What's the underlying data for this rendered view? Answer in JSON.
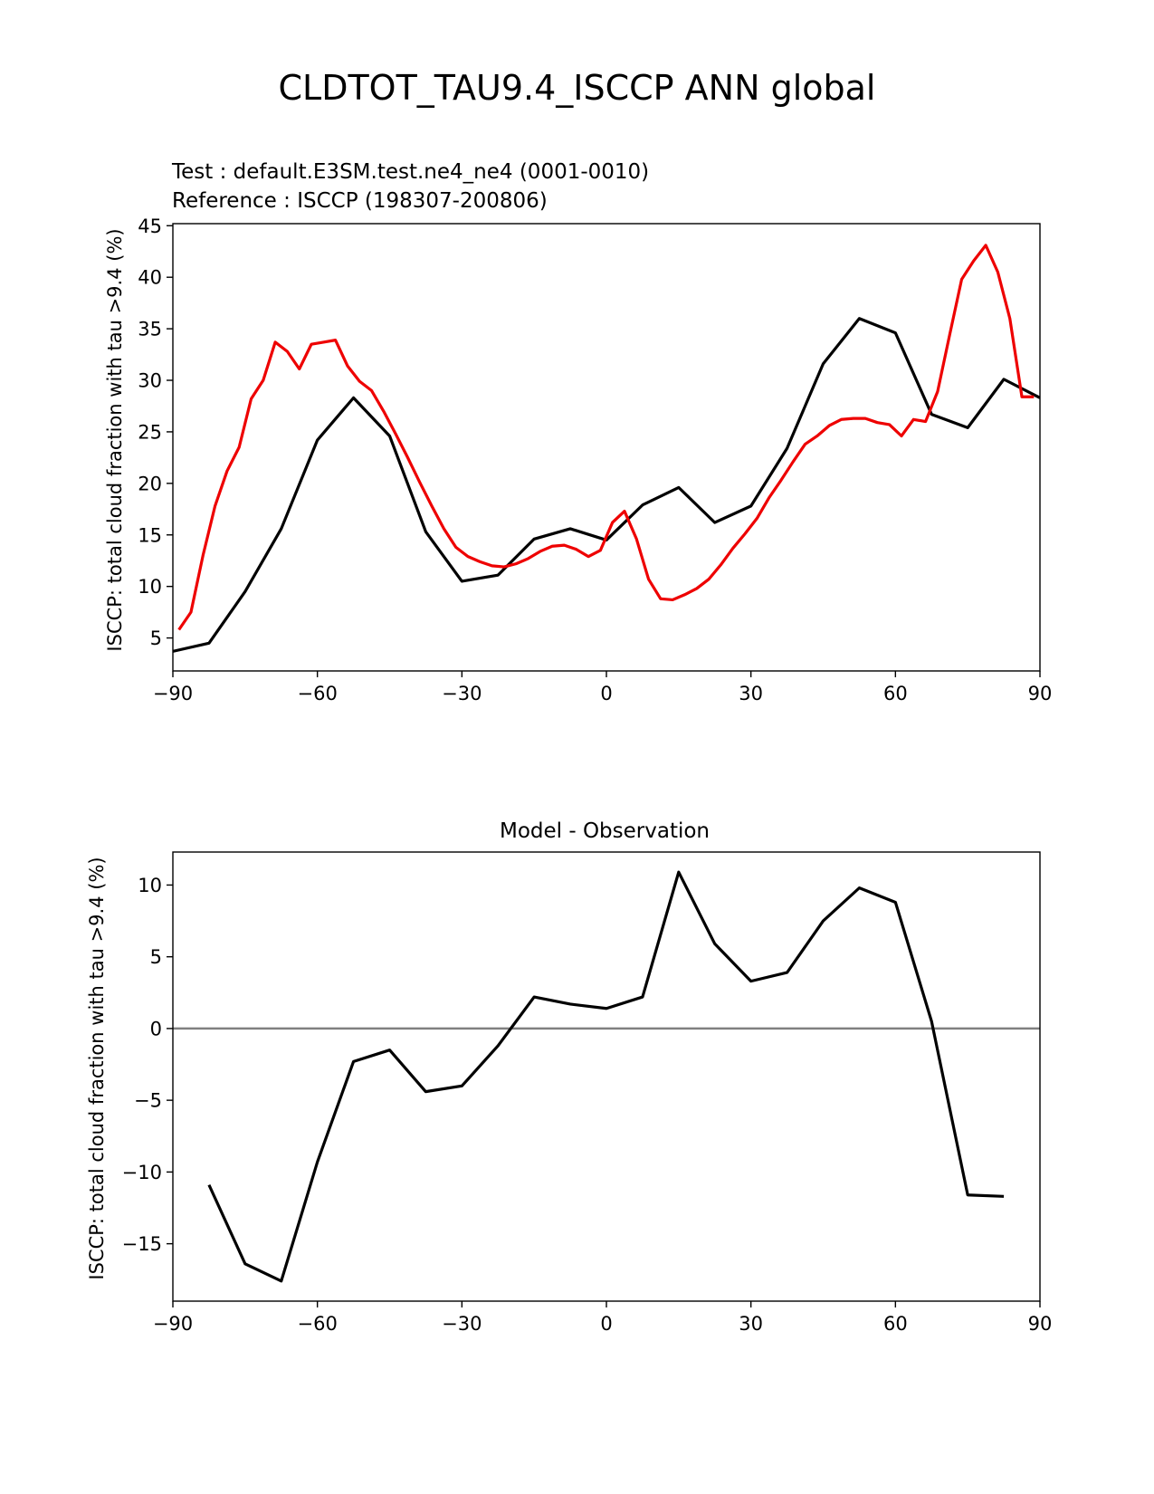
{
  "figure": {
    "title": "CLDTOT_TAU9.4_ISCCP ANN global"
  },
  "colors": {
    "test": "#000000",
    "reference": "#ee0000",
    "zero_line": "#808080",
    "axes": "#000000"
  },
  "chart_data": [
    {
      "type": "line",
      "test_label": "Test : default.E3SM.test.ne4_ne4 (0001-0010)",
      "reference_label": "Reference : ISCCP (198307-200806)",
      "xlabel": "",
      "ylabel": "ISCCP: total cloud fraction with tau >9.4 (%)",
      "xlim": [
        -90,
        90
      ],
      "ylim": [
        1.8,
        45.2
      ],
      "xticks": [
        -90,
        -60,
        -30,
        0,
        30,
        60,
        90
      ],
      "xtick_labels": [
        "−90",
        "−60",
        "−30",
        "0",
        "30",
        "60",
        "90"
      ],
      "yticks": [
        5,
        10,
        15,
        20,
        25,
        30,
        35,
        40,
        45
      ],
      "ytick_labels": [
        "5",
        "10",
        "15",
        "20",
        "25",
        "30",
        "35",
        "40",
        "45"
      ],
      "series": [
        {
          "name": "Test",
          "color_key": "test",
          "x": [
            -90,
            -82.5,
            -75,
            -67.5,
            -60,
            -52.5,
            -45,
            -37.5,
            -30,
            -22.5,
            -15,
            -7.5,
            0,
            7.5,
            15,
            22.5,
            30,
            37.5,
            45,
            52.5,
            60,
            67.5,
            75,
            82.5,
            90
          ],
          "y": [
            3.7,
            4.5,
            9.5,
            15.6,
            24.2,
            28.3,
            24.6,
            15.3,
            10.5,
            11.1,
            14.6,
            15.6,
            14.5,
            17.9,
            19.6,
            16.2,
            17.8,
            23.4,
            31.6,
            36.0,
            34.6,
            26.7,
            25.4,
            30.1,
            28.3
          ]
        },
        {
          "name": "Reference",
          "color_key": "reference",
          "x": [
            -88.75,
            -86.25,
            -83.75,
            -81.25,
            -78.75,
            -76.25,
            -73.75,
            -71.25,
            -68.75,
            -66.25,
            -63.75,
            -61.25,
            -58.75,
            -56.25,
            -53.75,
            -51.25,
            -48.75,
            -46.25,
            -43.75,
            -41.25,
            -38.75,
            -36.25,
            -33.75,
            -31.25,
            -28.75,
            -26.25,
            -23.75,
            -21.25,
            -18.75,
            -16.25,
            -13.75,
            -11.25,
            -8.75,
            -6.25,
            -3.75,
            -1.25,
            1.25,
            3.75,
            6.25,
            8.75,
            11.25,
            13.75,
            16.25,
            18.75,
            21.25,
            23.75,
            26.25,
            28.75,
            31.25,
            33.75,
            36.25,
            38.75,
            41.25,
            43.75,
            46.25,
            48.75,
            51.25,
            53.75,
            56.25,
            58.75,
            61.25,
            63.75,
            66.25,
            68.75,
            71.25,
            73.75,
            76.25,
            78.75,
            81.25,
            83.75,
            86.25,
            88.75
          ],
          "y": [
            5.8,
            7.5,
            13.0,
            17.8,
            21.2,
            23.5,
            28.2,
            30.0,
            33.7,
            32.8,
            31.1,
            33.5,
            33.7,
            33.9,
            31.4,
            29.9,
            29.0,
            27.0,
            24.8,
            22.5,
            20.1,
            17.8,
            15.6,
            13.8,
            12.9,
            12.4,
            12.0,
            11.9,
            12.2,
            12.7,
            13.4,
            13.9,
            14.0,
            13.6,
            12.9,
            13.5,
            16.2,
            17.3,
            14.6,
            10.7,
            8.8,
            8.7,
            9.2,
            9.8,
            10.7,
            12.1,
            13.7,
            15.1,
            16.6,
            18.6,
            20.3,
            22.1,
            23.8,
            24.6,
            25.6,
            26.2,
            26.3,
            26.3,
            25.9,
            25.7,
            24.6,
            26.2,
            26.0,
            28.9,
            34.4,
            39.8,
            41.6,
            43.1,
            40.5,
            36.0,
            28.4,
            28.4
          ]
        }
      ]
    },
    {
      "type": "line",
      "title": "Model - Observation",
      "xlabel": "",
      "ylabel": "ISCCP: total cloud fraction with tau >9.4 (%)",
      "xlim": [
        -90,
        90
      ],
      "ylim": [
        -19.0,
        12.3
      ],
      "xticks": [
        -90,
        -60,
        -30,
        0,
        30,
        60,
        90
      ],
      "xtick_labels": [
        "−90",
        "−60",
        "−30",
        "0",
        "30",
        "60",
        "90"
      ],
      "yticks": [
        -15,
        -10,
        -5,
        0,
        5,
        10
      ],
      "ytick_labels": [
        "−15",
        "−10",
        "−5",
        "0",
        "5",
        "10"
      ],
      "zero_line": 0,
      "series": [
        {
          "name": "Model - Observation",
          "color_key": "test",
          "x": [
            -82.5,
            -75,
            -67.5,
            -60,
            -52.5,
            -45,
            -37.5,
            -30,
            -22.5,
            -15,
            -7.5,
            0,
            7.5,
            15,
            22.5,
            30,
            37.5,
            45,
            52.5,
            60,
            67.5,
            75,
            82.5
          ],
          "y": [
            -10.9,
            -16.4,
            -17.6,
            -9.3,
            -2.3,
            -1.5,
            -4.4,
            -4.0,
            -1.2,
            2.2,
            1.7,
            1.4,
            2.2,
            10.9,
            5.9,
            3.3,
            3.9,
            7.5,
            9.8,
            8.8,
            0.5,
            -11.6,
            -11.7
          ]
        }
      ]
    }
  ]
}
